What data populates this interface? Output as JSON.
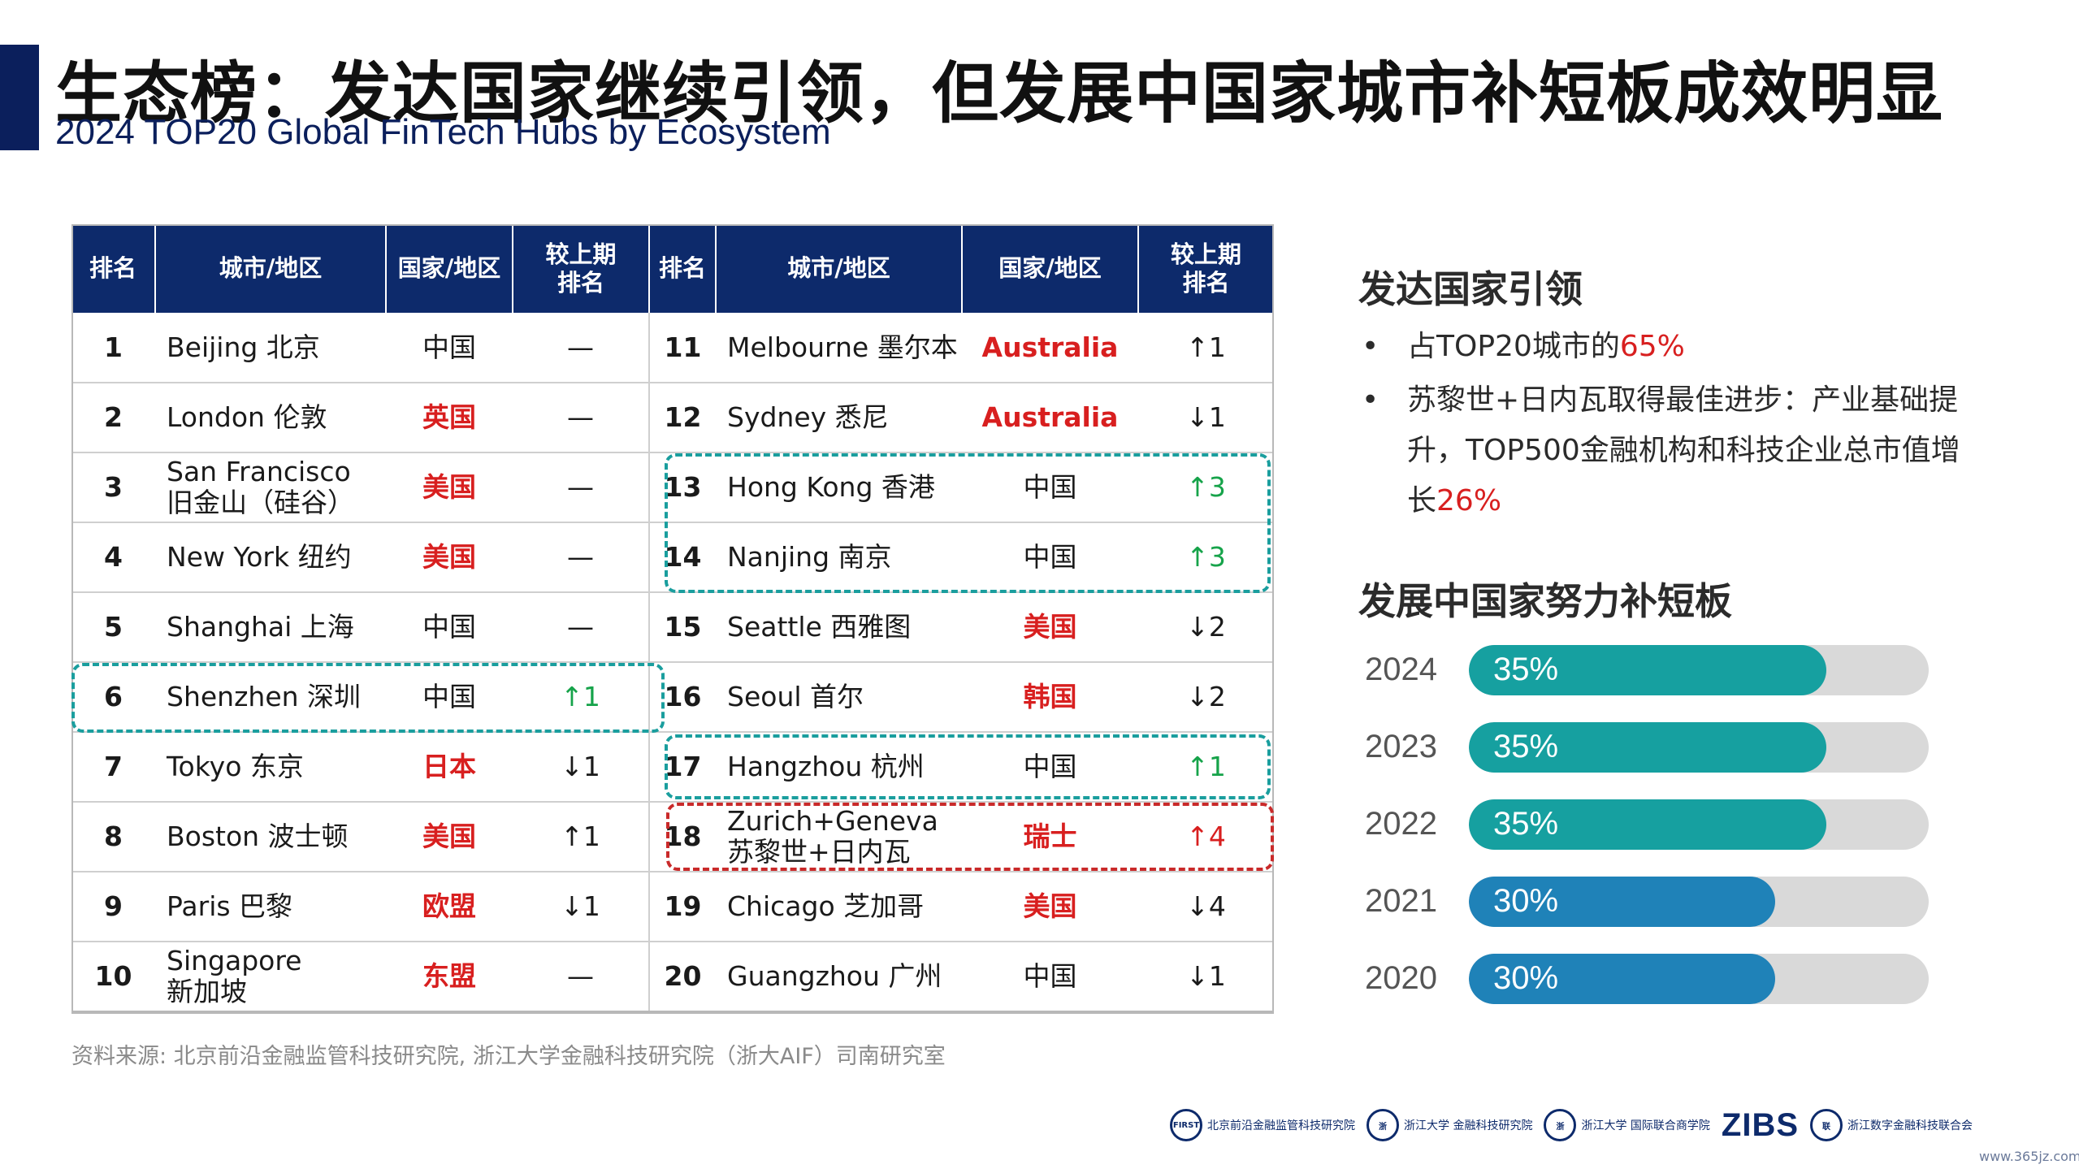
{
  "title": "生态榜：发达国家继续引领，但发展中国家城市补短板成效明显",
  "subtitle": "2024 TOP20 Global FinTech Hubs by Ecosystem",
  "table": {
    "headers": [
      "排名",
      "城市/地区",
      "国家/地区",
      "较上期\n排名",
      "排名",
      "城市/地区",
      "国家/地区",
      "较上期\n排名"
    ],
    "rows": [
      {
        "left": {
          "rank": "1",
          "city": "Beijing 北京",
          "country": "中国",
          "country_highlight": false,
          "change": "—",
          "change_color": "black"
        },
        "right": {
          "rank": "11",
          "city": "Melbourne 墨尔本",
          "country": "Australia",
          "country_highlight": true,
          "change": "↑1",
          "change_color": "black"
        }
      },
      {
        "left": {
          "rank": "2",
          "city": "London 伦敦",
          "country": "英国",
          "country_highlight": true,
          "change": "—",
          "change_color": "black"
        },
        "right": {
          "rank": "12",
          "city": "Sydney 悉尼",
          "country": "Australia",
          "country_highlight": true,
          "change": "↓1",
          "change_color": "black"
        }
      },
      {
        "left": {
          "rank": "3",
          "city": "San Francisco\n旧金山（硅谷）",
          "country": "美国",
          "country_highlight": true,
          "change": "—",
          "change_color": "black"
        },
        "right": {
          "rank": "13",
          "city": "Hong Kong 香港",
          "country": "中国",
          "country_highlight": false,
          "change": "↑3",
          "change_color": "green"
        }
      },
      {
        "left": {
          "rank": "4",
          "city": "New York 纽约",
          "country": "美国",
          "country_highlight": true,
          "change": "—",
          "change_color": "black"
        },
        "right": {
          "rank": "14",
          "city": "Nanjing 南京",
          "country": "中国",
          "country_highlight": false,
          "change": "↑3",
          "change_color": "green"
        }
      },
      {
        "left": {
          "rank": "5",
          "city": "Shanghai 上海",
          "country": "中国",
          "country_highlight": false,
          "change": "—",
          "change_color": "black"
        },
        "right": {
          "rank": "15",
          "city": "Seattle 西雅图",
          "country": "美国",
          "country_highlight": true,
          "change": "↓2",
          "change_color": "black"
        }
      },
      {
        "left": {
          "rank": "6",
          "city": "Shenzhen 深圳",
          "country": "中国",
          "country_highlight": false,
          "change": "↑1",
          "change_color": "green"
        },
        "right": {
          "rank": "16",
          "city": "Seoul 首尔",
          "country": "韩国",
          "country_highlight": true,
          "change": "↓2",
          "change_color": "black"
        }
      },
      {
        "left": {
          "rank": "7",
          "city": "Tokyo 东京",
          "country": "日本",
          "country_highlight": true,
          "change": "↓1",
          "change_color": "black"
        },
        "right": {
          "rank": "17",
          "city": "Hangzhou 杭州",
          "country": "中国",
          "country_highlight": false,
          "change": "↑1",
          "change_color": "green"
        }
      },
      {
        "left": {
          "rank": "8",
          "city": "Boston 波士顿",
          "country": "美国",
          "country_highlight": true,
          "change": "↑1",
          "change_color": "black"
        },
        "right": {
          "rank": "18",
          "city": "Zurich+Geneva\n苏黎世+日内瓦",
          "country": "瑞士",
          "country_highlight": true,
          "change": "↑4",
          "change_color": "red"
        }
      },
      {
        "left": {
          "rank": "9",
          "city": "Paris 巴黎",
          "country": "欧盟",
          "country_highlight": true,
          "change": "↓1",
          "change_color": "black"
        },
        "right": {
          "rank": "19",
          "city": "Chicago 芝加哥",
          "country": "美国",
          "country_highlight": true,
          "change": "↓4",
          "change_color": "black"
        }
      },
      {
        "left": {
          "rank": "10",
          "city": "Singapore\n新加坡",
          "country": "东盟",
          "country_highlight": true,
          "change": "—",
          "change_color": "black"
        },
        "right": {
          "rank": "20",
          "city": "Guangzhou 广州",
          "country": "中国",
          "country_highlight": false,
          "change": "↓1",
          "change_color": "black"
        }
      }
    ]
  },
  "source": "资料来源: 北京前沿金融监管科技研究院, 浙江大学金融科技研究院（浙大AIF）司南研究室",
  "side": {
    "section1_title": "发达国家引领",
    "bullet1_prefix": "占TOP20城市的",
    "bullet1_value": "65%",
    "bullet2_prefix": "苏黎世+日内瓦取得最佳进步：产业基础提升，TOP500金融机构和科技企业总市值增长",
    "bullet2_value": "26%",
    "bullet_symbol": "•",
    "section2_title": "发展中国家努力补短板"
  },
  "chart_data": {
    "type": "bar",
    "orientation": "horizontal",
    "categories": [
      "2024",
      "2023",
      "2022",
      "2021",
      "2020"
    ],
    "values": [
      35,
      35,
      35,
      30,
      30
    ],
    "labels": [
      "35%",
      "35%",
      "35%",
      "30%",
      "30%"
    ],
    "xlim": [
      0,
      45
    ],
    "colors": [
      "#16a0a0",
      "#16a0a0",
      "#16a0a0",
      "#1f82b8",
      "#1f82b8"
    ],
    "track_color": "#d9d9d9"
  },
  "logos": [
    {
      "name": "北京前沿金融监管科技研究院",
      "mark": "FIRST"
    },
    {
      "name": "浙江大学 金融科技研究院",
      "mark": "浙"
    },
    {
      "name": "浙江大学 国际联合商学院",
      "mark": "浙"
    },
    {
      "name": "ZIBS",
      "mark": ""
    },
    {
      "name": "浙江数字金融科技联合会",
      "mark": "联"
    }
  ],
  "watermark": "www.365jz.com",
  "colors": {
    "header_bg": "#0d2a6b",
    "accent_red": "#d81f1f",
    "accent_green": "#16a34a",
    "teal": "#1a9e9e"
  }
}
